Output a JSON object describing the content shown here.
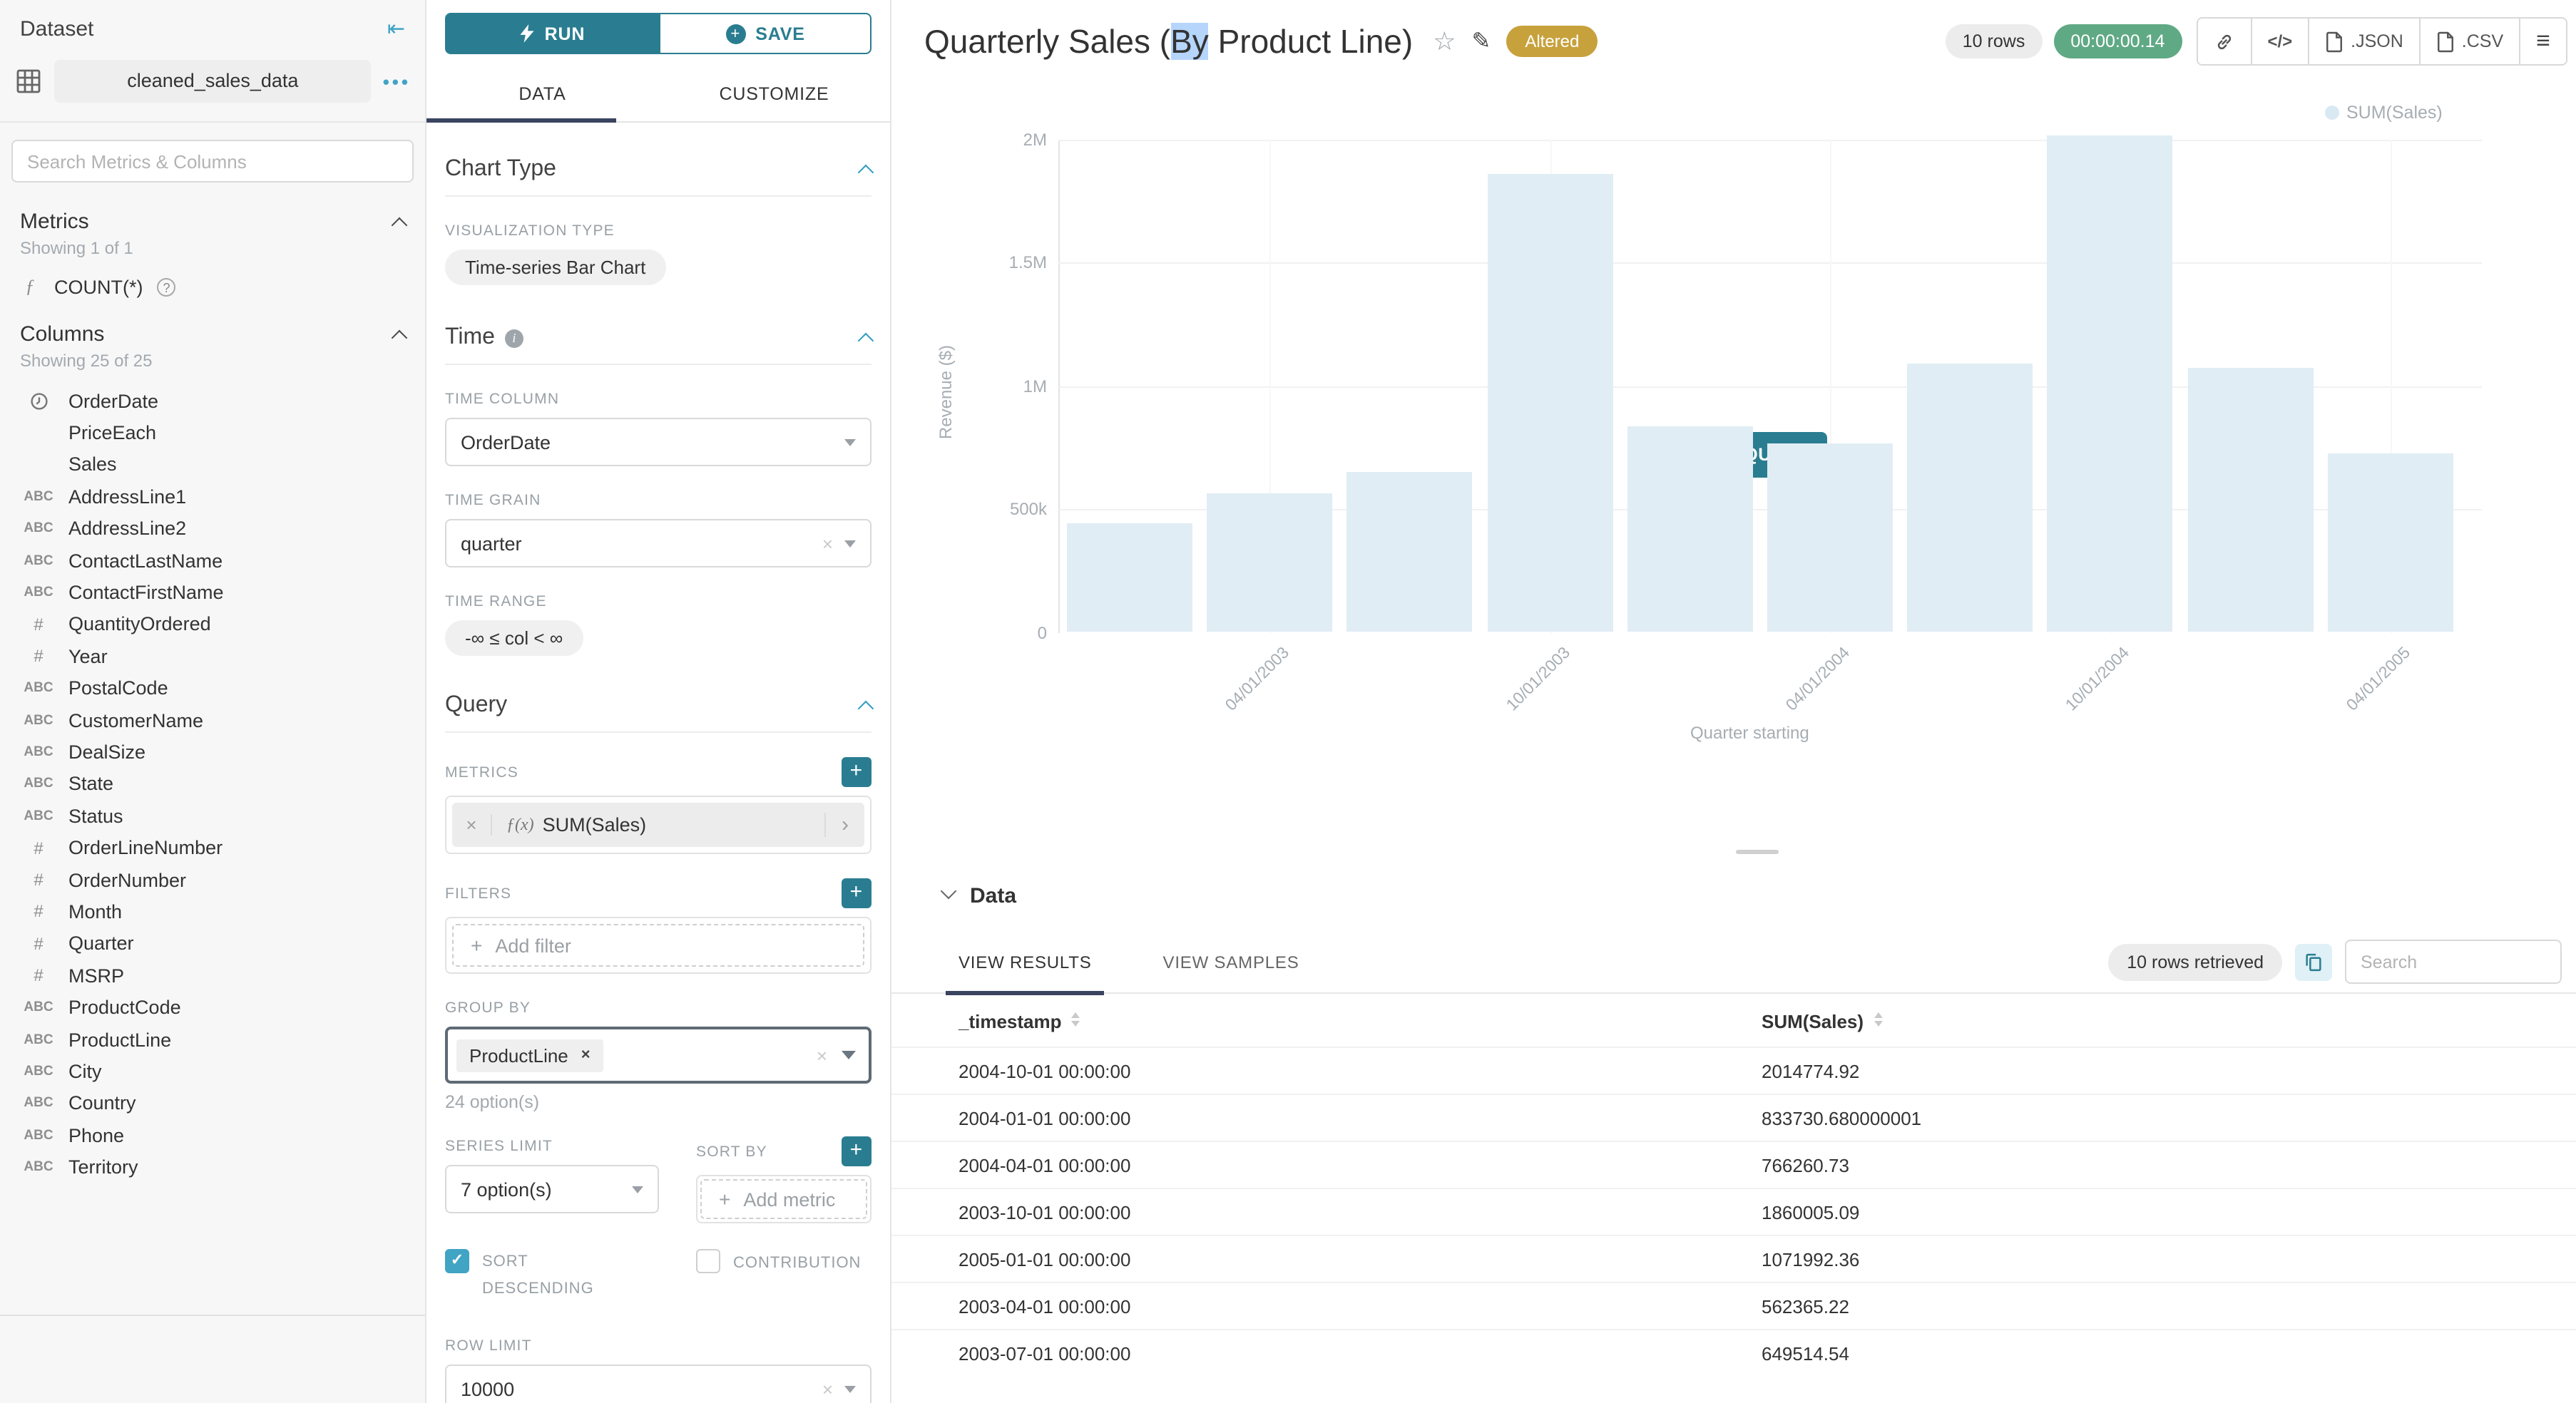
{
  "colors": {
    "accent": "#2A7D90",
    "accent_light": "#41A4C4",
    "tab_indicator": "#3A4460",
    "bar_fill": "#E0EDF4",
    "altered_badge": "#C7A13C",
    "timer_badge": "#60A985",
    "selection_highlight": "#B5D5FB"
  },
  "icons": {
    "collapse": "⇤",
    "dots": "•••",
    "star": "☆",
    "pencil": "✎",
    "menu": "≡",
    "code": "</>",
    "check": "✓",
    "plus": "+",
    "chip_x": "×",
    "chip_arrow": "›",
    "clear_x": "×"
  },
  "sidebar": {
    "title": "Dataset",
    "dataset_name": "cleaned_sales_data",
    "search_placeholder": "Search Metrics & Columns",
    "metrics": {
      "header": "Metrics",
      "showing": "Showing 1 of 1",
      "items": [
        {
          "name": "COUNT(*)",
          "icon": "function"
        }
      ]
    },
    "columns": {
      "header": "Columns",
      "showing": "Showing 25 of 25",
      "items": [
        {
          "name": "OrderDate",
          "type": "time"
        },
        {
          "name": "PriceEach",
          "type": "none"
        },
        {
          "name": "Sales",
          "type": "none"
        },
        {
          "name": "AddressLine1",
          "type": "text"
        },
        {
          "name": "AddressLine2",
          "type": "text"
        },
        {
          "name": "ContactLastName",
          "type": "text"
        },
        {
          "name": "ContactFirstName",
          "type": "text"
        },
        {
          "name": "QuantityOrdered",
          "type": "num"
        },
        {
          "name": "Year",
          "type": "num"
        },
        {
          "name": "PostalCode",
          "type": "text"
        },
        {
          "name": "CustomerName",
          "type": "text"
        },
        {
          "name": "DealSize",
          "type": "text"
        },
        {
          "name": "State",
          "type": "text"
        },
        {
          "name": "Status",
          "type": "text"
        },
        {
          "name": "OrderLineNumber",
          "type": "num"
        },
        {
          "name": "OrderNumber",
          "type": "num"
        },
        {
          "name": "Month",
          "type": "num"
        },
        {
          "name": "Quarter",
          "type": "num"
        },
        {
          "name": "MSRP",
          "type": "num"
        },
        {
          "name": "ProductCode",
          "type": "text"
        },
        {
          "name": "ProductLine",
          "type": "text"
        },
        {
          "name": "City",
          "type": "text"
        },
        {
          "name": "Country",
          "type": "text"
        },
        {
          "name": "Phone",
          "type": "text"
        },
        {
          "name": "Territory",
          "type": "text"
        }
      ]
    }
  },
  "panel": {
    "run_label": "RUN",
    "save_label": "SAVE",
    "tab_data": "DATA",
    "tab_customize": "CUSTOMIZE",
    "chart_type": {
      "header": "Chart Type",
      "viz_type_label": "VISUALIZATION TYPE",
      "viz_type": "Time-series Bar Chart"
    },
    "time": {
      "header": "Time",
      "time_column_label": "TIME COLUMN",
      "time_column": "OrderDate",
      "time_grain_label": "TIME GRAIN",
      "time_grain": "quarter",
      "time_range_label": "TIME RANGE",
      "time_range": "-∞ ≤ col < ∞"
    },
    "query": {
      "header": "Query",
      "metrics_label": "METRICS",
      "metric_prefix": "ƒ(x)",
      "metric": "SUM(Sales)",
      "filters_label": "FILTERS",
      "add_filter": "Add filter",
      "group_by_label": "GROUP BY",
      "group_by_value": "ProductLine",
      "group_by_options": "24 option(s)",
      "series_limit_label": "SERIES LIMIT",
      "series_limit": "7 option(s)",
      "sort_by_label": "SORT BY",
      "add_metric": "Add metric",
      "sort_descending_label": "SORT DESCENDING",
      "contribution_label": "CONTRIBUTION",
      "row_limit_label": "ROW LIMIT",
      "row_limit": "10000"
    }
  },
  "header": {
    "title_pre": "Quarterly Sales (",
    "title_highlight": "By",
    "title_post": " Product Line)",
    "altered_badge": "Altered",
    "rows_badge": "10 rows",
    "timer_badge": "00:00:00.14",
    "export_json": ".JSON",
    "export_csv": ".CSV"
  },
  "chart": {
    "run_query_label": "RUN QUERY"
  },
  "chart_data": {
    "type": "bar",
    "title": "Quarterly Sales (By Product Line)",
    "xlabel": "Quarter starting",
    "ylabel": "Revenue ($)",
    "ylim": [
      0,
      2000000
    ],
    "grid": true,
    "legend_position": "top-right",
    "legend": [
      {
        "name": "SUM(Sales)"
      }
    ],
    "y_ticks": [
      {
        "value": 0,
        "label": "0"
      },
      {
        "value": 500000,
        "label": "500k"
      },
      {
        "value": 1000000,
        "label": "1M"
      },
      {
        "value": 1500000,
        "label": "1.5M"
      },
      {
        "value": 2000000,
        "label": "2M"
      }
    ],
    "x": [
      "2003-01-01",
      "2003-04-01",
      "2003-07-01",
      "2003-10-01",
      "2004-01-01",
      "2004-04-01",
      "2004-07-01",
      "2004-10-01",
      "2005-01-01",
      "2005-04-01"
    ],
    "x_tick_indices": [
      1,
      3,
      5,
      7,
      9
    ],
    "x_tick_labels": [
      "04/01/2003",
      "10/01/2003",
      "04/01/2004",
      "10/01/2004",
      "04/01/2005"
    ],
    "series": [
      {
        "name": "SUM(Sales)",
        "values": [
          445000,
          562365.22,
          649514.54,
          1860005.09,
          833730.68,
          766260.73,
          1090000,
          2014774.92,
          1071992.36,
          726000
        ]
      }
    ],
    "estimated_indices": [
      0,
      6,
      9
    ]
  },
  "data_panel": {
    "header": "Data",
    "tab_results": "VIEW RESULTS",
    "tab_samples": "VIEW SAMPLES",
    "rows_retrieved": "10 rows retrieved",
    "search_placeholder": "Search",
    "table": {
      "columns": [
        "_timestamp",
        "SUM(Sales)"
      ],
      "rows": [
        [
          "2004-10-01 00:00:00",
          "2014774.92"
        ],
        [
          "2004-01-01 00:00:00",
          "833730.680000001"
        ],
        [
          "2004-04-01 00:00:00",
          "766260.73"
        ],
        [
          "2003-10-01 00:00:00",
          "1860005.09"
        ],
        [
          "2005-01-01 00:00:00",
          "1071992.36"
        ],
        [
          "2003-04-01 00:00:00",
          "562365.22"
        ],
        [
          "2003-07-01 00:00:00",
          "649514.54"
        ]
      ]
    }
  }
}
